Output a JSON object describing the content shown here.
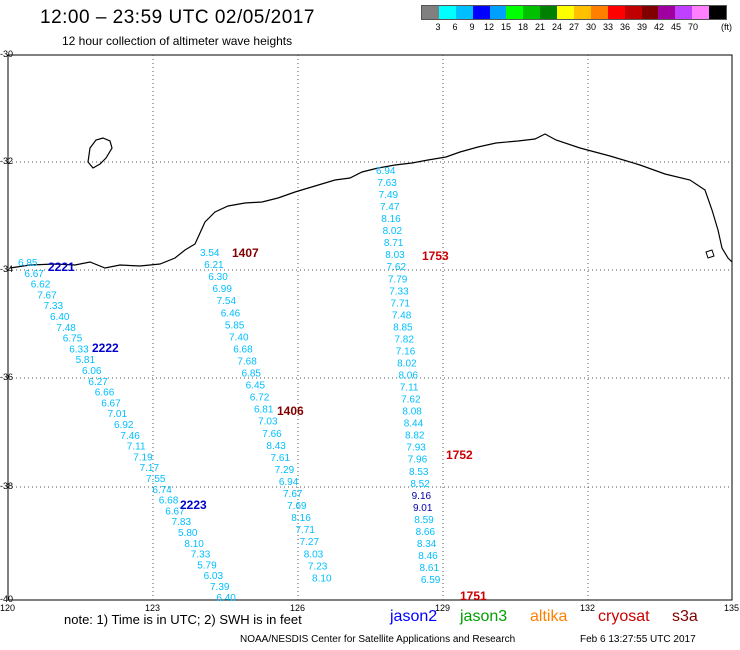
{
  "header": {
    "title": "12:00 – 23:59 UTC 02/05/2017",
    "subtitle": "12 hour collection of altimeter wave heights"
  },
  "colorbar": {
    "unit": "(ft)",
    "colors": [
      "#808080",
      "#00ffff",
      "#00bfff",
      "#0000ff",
      "#00a0ff",
      "#00ff00",
      "#00c000",
      "#008000",
      "#ffff00",
      "#ffc000",
      "#ff8000",
      "#ff0000",
      "#c00000",
      "#800000",
      "#a000a0",
      "#c040ff",
      "#ff80ff",
      "#000000"
    ],
    "labels": [
      "3",
      "6",
      "9",
      "12",
      "15",
      "18",
      "21",
      "24",
      "27",
      "30",
      "33",
      "36",
      "39",
      "42",
      "45",
      "70"
    ]
  },
  "axes": {
    "lat_ticks": [
      "-30",
      "-32",
      "-34",
      "-36",
      "-38",
      "-40"
    ],
    "lon_ticks": [
      "120",
      "123",
      "126",
      "129",
      "132",
      "135"
    ]
  },
  "tracks": [
    {
      "name": "jason2-2221",
      "color": "#00bfff",
      "time_label": "2221",
      "time_color": "#0000cc",
      "values": [
        "6.85",
        "6.67",
        "6.62",
        "7.67",
        "7.33",
        "6.40",
        "7.48",
        "6.75",
        "6.33",
        "5.81",
        "6.06",
        "6.27",
        "6.66",
        "6.67",
        "7.01",
        "6.92",
        "7.46",
        "7.11",
        "7.19",
        "7.17",
        "7.55",
        "6.74",
        "6.68",
        "6.67",
        "7.83",
        "5.80",
        "8.10",
        "7.33",
        "5.79",
        "6.03",
        "7.39",
        "6.40"
      ]
    },
    {
      "name": "jason2-2222",
      "time_label": "2222",
      "time_color": "#0000cc"
    },
    {
      "name": "jason2-2223",
      "time_label": "2223",
      "time_color": "#0000cc"
    },
    {
      "name": "track-1407",
      "color": "#00bfff",
      "time_label": "1407",
      "time_color": "#800000",
      "values": [
        "3.54",
        "6.21",
        "6.30",
        "6.99",
        "7.54",
        "6.46",
        "5.85",
        "7.40",
        "6.68",
        "7.68",
        "6.85",
        "6.45",
        "6.72",
        "6.81",
        "7.03",
        "7.66",
        "8.43",
        "7.61",
        "7.29",
        "6.94",
        "7.67",
        "7.69",
        "8.16",
        "7.71",
        "7.27",
        "8.03",
        "7.23",
        "8.10"
      ]
    },
    {
      "name": "track-1406",
      "time_label": "1406",
      "time_color": "#800000"
    },
    {
      "name": "track-1753",
      "color": "#00bfff",
      "time_label": "1753",
      "time_color": "#cc0000",
      "values": [
        "6.94",
        "7.63",
        "7.49",
        "7.47",
        "8.16",
        "8.02",
        "8.71",
        "8.03",
        "7.62",
        "7.79",
        "7.33",
        "7.71",
        "7.48",
        "8.85",
        "7.82",
        "7.16",
        "8.02",
        "8.06",
        "7.11",
        "7.62",
        "8.08",
        "8.44",
        "8.82",
        "7.93",
        "7.96",
        "8.53",
        "8.52",
        "9.16",
        "9.01",
        "8.59",
        "8.66",
        "8.34",
        "8.46",
        "8.61",
        "6.59"
      ]
    },
    {
      "name": "track-1752",
      "time_label": "1752",
      "time_color": "#cc0000"
    },
    {
      "name": "track-1751",
      "time_label": "1751",
      "time_color": "#cc0000"
    }
  ],
  "footer": {
    "note": "note:  1) Time is in UTC;  2) SWH is in feet",
    "legend": [
      {
        "label": "jason2",
        "color": "#0000ff"
      },
      {
        "label": "jason3",
        "color": "#00a000"
      },
      {
        "label": "altika",
        "color": "#ff8000"
      },
      {
        "label": "cryosat",
        "color": "#cc0000"
      },
      {
        "label": "s3a",
        "color": "#800000"
      }
    ],
    "credit": "NOAA/NESDIS Center for Satellite Applications and Research",
    "stamp": "Feb  6 13:27:55 UTC 2017"
  }
}
